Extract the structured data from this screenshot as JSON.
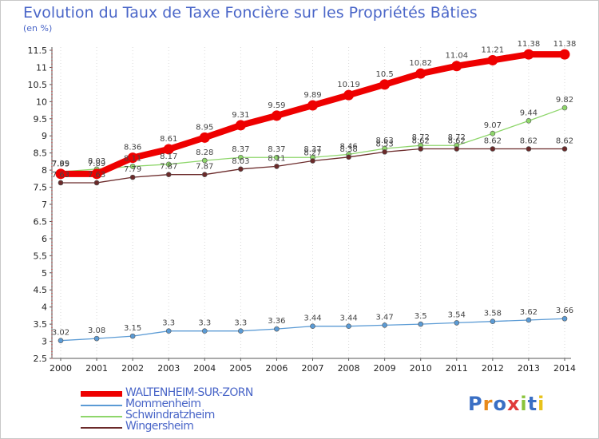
{
  "page": {
    "title": "Evolution du Taux de Taxe Foncière sur les Propriétés Bâties",
    "subtitle": "(en %)",
    "logo_text": "Proxiti"
  },
  "chart_data": {
    "type": "line",
    "title": "Evolution du Taux de Taxe Foncière sur les Propriétés Bâties",
    "ylabel": "(en %)",
    "xlabel": "",
    "x": [
      2000,
      2001,
      2002,
      2003,
      2004,
      2005,
      2006,
      2007,
      2008,
      2009,
      2010,
      2011,
      2012,
      2013,
      2014
    ],
    "ylim": [
      2.5,
      11.5
    ],
    "yticks": [
      2.5,
      3,
      3.5,
      4,
      4.5,
      5,
      5.5,
      6,
      6.5,
      7,
      7.5,
      8,
      8.5,
      9,
      9.5,
      10,
      10.5,
      11,
      11.5
    ],
    "grid": "vertical",
    "legend_position": "bottom-left",
    "series": [
      {
        "name": "WALTENHEIM-SUR-ZORN",
        "color": "#ee0000",
        "emphasis": true,
        "values": [
          7.89,
          7.89,
          8.36,
          8.61,
          8.95,
          9.31,
          9.59,
          9.89,
          10.19,
          10.5,
          10.82,
          11.04,
          11.21,
          11.38,
          11.38
        ]
      },
      {
        "name": "Mommenheim",
        "color": "#5b9bd5",
        "emphasis": false,
        "values": [
          3.02,
          3.08,
          3.15,
          3.3,
          3.3,
          3.3,
          3.36,
          3.44,
          3.44,
          3.47,
          3.5,
          3.54,
          3.58,
          3.62,
          3.66
        ]
      },
      {
        "name": "Schwindratzheim",
        "color": "#8ed66b",
        "emphasis": false,
        "values": [
          7.95,
          8.03,
          8.11,
          8.17,
          8.28,
          8.37,
          8.37,
          8.37,
          8.46,
          8.63,
          8.72,
          8.72,
          9.07,
          9.44,
          9.82
        ]
      },
      {
        "name": "Wingersheim",
        "color": "#6b2a2a",
        "emphasis": false,
        "values": [
          7.63,
          7.63,
          7.79,
          7.87,
          7.87,
          8.03,
          8.11,
          8.27,
          8.38,
          8.53,
          8.62,
          8.62,
          8.62,
          8.62,
          8.62
        ]
      }
    ]
  }
}
